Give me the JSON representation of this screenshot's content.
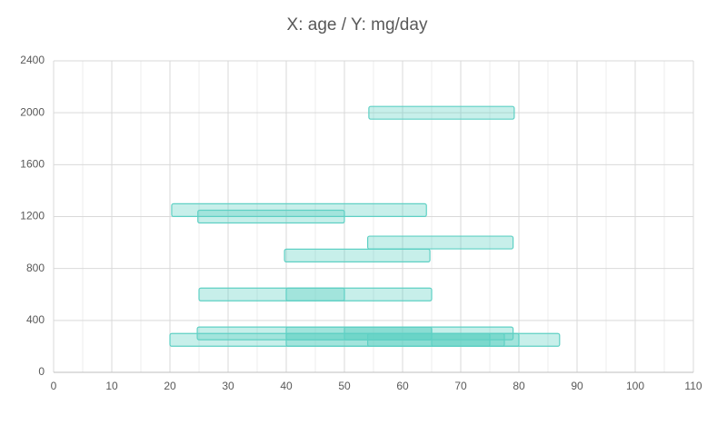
{
  "chart_data": {
    "type": "range-bar",
    "title": "X: age / Y: mg/day",
    "xlim": [
      0,
      110
    ],
    "xticks": [
      0,
      10,
      20,
      30,
      40,
      50,
      60,
      70,
      80,
      90,
      100,
      110
    ],
    "xminorticks": [
      5,
      15,
      25,
      35,
      45,
      55,
      65,
      75,
      85,
      95,
      105
    ],
    "ylim": [
      0,
      2400
    ],
    "yticks": [
      0,
      400,
      800,
      1200,
      1600,
      2000,
      2400
    ],
    "grid": true,
    "color": "#5fd0c4",
    "bars": [
      {
        "x": [
          54.2,
          79.2
        ],
        "y": 2000
      },
      {
        "x": [
          20.3,
          64.1
        ],
        "y": 1250
      },
      {
        "x": [
          24.8,
          50
        ],
        "y": 1200
      },
      {
        "x": [
          54,
          79
        ],
        "y": 1000
      },
      {
        "x": [
          39.7,
          64.7
        ],
        "y": 900
      },
      {
        "x": [
          25,
          65
        ],
        "y": 600
      },
      {
        "x": [
          40,
          50
        ],
        "y": 600
      },
      {
        "x": [
          24.7,
          79
        ],
        "y": 300
      },
      {
        "x": [
          40,
          65
        ],
        "y": 300
      },
      {
        "x": [
          50,
          65
        ],
        "y": 300
      },
      {
        "x": [
          20,
          87
        ],
        "y": 250
      },
      {
        "x": [
          40,
          75
        ],
        "y": 250
      },
      {
        "x": [
          54,
          77.5
        ],
        "y": 250
      },
      {
        "x": [
          65,
          80
        ],
        "y": 250
      }
    ]
  }
}
